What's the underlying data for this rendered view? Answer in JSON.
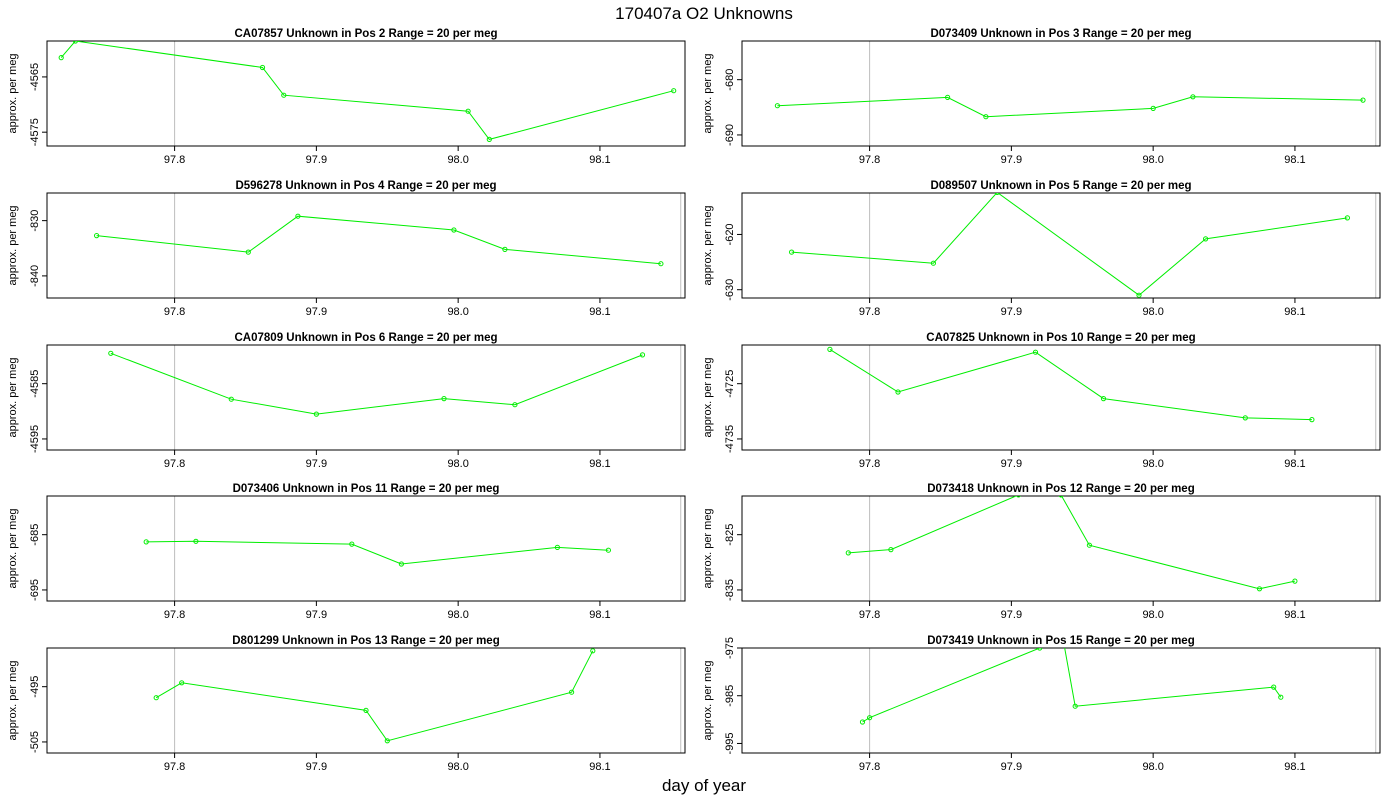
{
  "title": "170407a  O2 Unknowns",
  "xlabel": "day of year",
  "ylabel": "approx. per meg",
  "colors": {
    "series": "#00ee00",
    "frame": "#000000",
    "vline": "#bebebe"
  },
  "chart_data": [
    {
      "type": "line",
      "title": "CA07857    Unknown in Pos 2         Range = 20 per meg",
      "xlim": [
        97.71,
        98.16
      ],
      "ylim": [
        -4577.5,
        -4558.5
      ],
      "yticks": [
        -4565,
        -4575
      ],
      "xticks": [
        97.8,
        97.9,
        98.0,
        98.1
      ],
      "vlines": [
        97.8
      ],
      "x": [
        97.72,
        97.73,
        97.862,
        97.877,
        98.007,
        98.022,
        98.152
      ],
      "y": [
        -4561.5,
        -4558.5,
        -4563.3,
        -4568.3,
        -4571.2,
        -4576.3,
        -4567.5
      ]
    },
    {
      "type": "line",
      "title": "D073409    Unknown in Pos 3         Range = 20 per meg",
      "xlim": [
        97.71,
        98.16
      ],
      "ylim": [
        -692,
        -673
      ],
      "yticks": [
        -680,
        -690
      ],
      "xticks": [
        97.8,
        97.9,
        98.0,
        98.1
      ],
      "vlines": [
        97.8,
        98.157
      ],
      "x": [
        97.735,
        97.855,
        97.882,
        98.0,
        98.028,
        98.148
      ],
      "y": [
        -684.7,
        -683.2,
        -686.7,
        -685.2,
        -683.1,
        -683.7
      ]
    },
    {
      "type": "line",
      "title": "D596278    Unknown in Pos 4         Range = 20 per meg",
      "xlim": [
        97.71,
        98.16
      ],
      "ylim": [
        -844,
        -825
      ],
      "yticks": [
        -830,
        -840
      ],
      "xticks": [
        97.8,
        97.9,
        98.0,
        98.1
      ],
      "vlines": [
        97.8,
        98.157
      ],
      "x": [
        97.745,
        97.852,
        97.887,
        97.997,
        98.033,
        98.143
      ],
      "y": [
        -832.7,
        -835.7,
        -829.2,
        -831.7,
        -835.2,
        -837.8
      ]
    },
    {
      "type": "line",
      "title": "D089507    Unknown in Pos 5         Range = 20 per meg",
      "xlim": [
        97.71,
        98.16
      ],
      "ylim": [
        -631.5,
        -612.5
      ],
      "yticks": [
        -620,
        -630
      ],
      "xticks": [
        97.8,
        97.9,
        98.0,
        98.1
      ],
      "vlines": [
        97.8,
        98.157
      ],
      "x": [
        97.745,
        97.845,
        97.89,
        97.99,
        98.037,
        98.137
      ],
      "y": [
        -623.2,
        -625.2,
        -612.4,
        -631.0,
        -620.8,
        -617.0
      ]
    },
    {
      "type": "line",
      "title": "CA07809    Unknown in Pos 6         Range = 20 per meg",
      "xlim": [
        97.71,
        98.16
      ],
      "ylim": [
        -4597,
        -4578
      ],
      "yticks": [
        -4585,
        -4595
      ],
      "xticks": [
        97.8,
        97.9,
        98.0,
        98.1
      ],
      "vlines": [
        97.8,
        98.157
      ],
      "x": [
        97.755,
        97.84,
        97.9,
        97.99,
        98.04,
        98.13
      ],
      "y": [
        -4579.5,
        -4587.8,
        -4590.5,
        -4587.7,
        -4588.8,
        -4579.8
      ]
    },
    {
      "type": "line",
      "title": "CA07825    Unknown in Pos 10         Range = 20 per meg",
      "xlim": [
        97.71,
        98.16
      ],
      "ylim": [
        -4737,
        -4718
      ],
      "yticks": [
        -4725,
        -4735
      ],
      "xticks": [
        97.8,
        97.9,
        98.0,
        98.1
      ],
      "vlines": [
        97.8,
        98.157
      ],
      "x": [
        97.772,
        97.82,
        97.917,
        97.965,
        98.065,
        98.112
      ],
      "y": [
        -4718.8,
        -4726.5,
        -4719.3,
        -4727.7,
        -4731.2,
        -4731.5
      ]
    },
    {
      "type": "line",
      "title": "D073406    Unknown in Pos 11         Range = 20 per meg",
      "xlim": [
        97.71,
        98.16
      ],
      "ylim": [
        -697,
        -678
      ],
      "yticks": [
        -685,
        -695
      ],
      "xticks": [
        97.8,
        97.9,
        98.0,
        98.1
      ],
      "vlines": [
        97.8,
        98.157
      ],
      "x": [
        97.78,
        97.815,
        97.925,
        97.96,
        98.07,
        98.106
      ],
      "y": [
        -686.3,
        -686.2,
        -686.7,
        -690.3,
        -687.3,
        -687.8
      ]
    },
    {
      "type": "line",
      "title": "D073418    Unknown in Pos 12         Range = 20 per meg",
      "xlim": [
        97.71,
        98.16
      ],
      "ylim": [
        -837,
        -818
      ],
      "yticks": [
        -825,
        -835
      ],
      "xticks": [
        97.8,
        97.9,
        98.0,
        98.1
      ],
      "vlines": [
        97.8,
        98.157
      ],
      "x": [
        97.785,
        97.815,
        97.905,
        97.935,
        97.955,
        98.075,
        98.1
      ],
      "y": [
        -828.3,
        -827.7,
        -817.8,
        -817.8,
        -826.9,
        -834.8,
        -833.4
      ]
    },
    {
      "type": "line",
      "title": "D801299    Unknown in Pos 13         Range = 20 per meg",
      "xlim": [
        97.71,
        98.16
      ],
      "ylim": [
        -507,
        -488
      ],
      "yticks": [
        -495,
        -505
      ],
      "xticks": [
        97.8,
        97.9,
        98.0,
        98.1
      ],
      "vlines": [
        97.8,
        98.157
      ],
      "x": [
        97.787,
        97.805,
        97.935,
        97.95,
        98.08,
        98.095
      ],
      "y": [
        -497.0,
        -494.3,
        -499.3,
        -504.8,
        -496.0,
        -488.5
      ]
    },
    {
      "type": "line",
      "title": "D073419    Unknown in Pos 15         Range = 20 per meg",
      "xlim": [
        97.71,
        98.16
      ],
      "ylim": [
        -997,
        -975
      ],
      "yticks": [
        -975,
        -985,
        -995
      ],
      "xticks": [
        97.8,
        97.9,
        98.0,
        98.1
      ],
      "vlines": [
        97.8,
        98.157
      ],
      "x": [
        97.795,
        97.8,
        97.92,
        97.937,
        97.945,
        98.085,
        98.09
      ],
      "y": [
        -990.5,
        -989.6,
        -975.0,
        -974.0,
        -987.2,
        -983.2,
        -985.3
      ]
    }
  ]
}
